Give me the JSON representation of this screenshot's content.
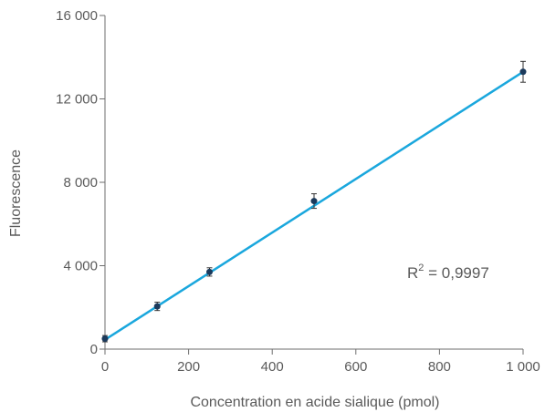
{
  "chart_data": {
    "type": "scatter",
    "xlabel": "Concentration en acide sialique (pmol)",
    "ylabel": "Fluorescence",
    "xlim": [
      0,
      1000
    ],
    "ylim": [
      0,
      16000
    ],
    "x_ticks": [
      0,
      200,
      400,
      600,
      800,
      1000
    ],
    "x_tick_labels": [
      "0",
      "200",
      "400",
      "600",
      "800",
      "1 000"
    ],
    "y_ticks": [
      0,
      4000,
      8000,
      12000,
      16000
    ],
    "y_tick_labels": [
      "0",
      "4 000",
      "8 000",
      "12 000",
      "16 000"
    ],
    "points": [
      {
        "x": 0,
        "y": 500,
        "err": 150
      },
      {
        "x": 125,
        "y": 2050,
        "err": 200
      },
      {
        "x": 250,
        "y": 3700,
        "err": 200
      },
      {
        "x": 500,
        "y": 7100,
        "err": 350
      },
      {
        "x": 1000,
        "y": 13300,
        "err": 500
      }
    ],
    "fit_line": {
      "x": [
        0,
        1000
      ],
      "y": [
        450,
        13300
      ]
    },
    "annotation": {
      "r2_base": "R",
      "r2_exp": "2",
      "r2_rest": " = 0,9997"
    },
    "grid": false,
    "colors": {
      "fit_line": "#1aa7dd",
      "point": "#1b3a5c",
      "axis": "#6e6e6e",
      "text": "#5a5a5a"
    }
  }
}
